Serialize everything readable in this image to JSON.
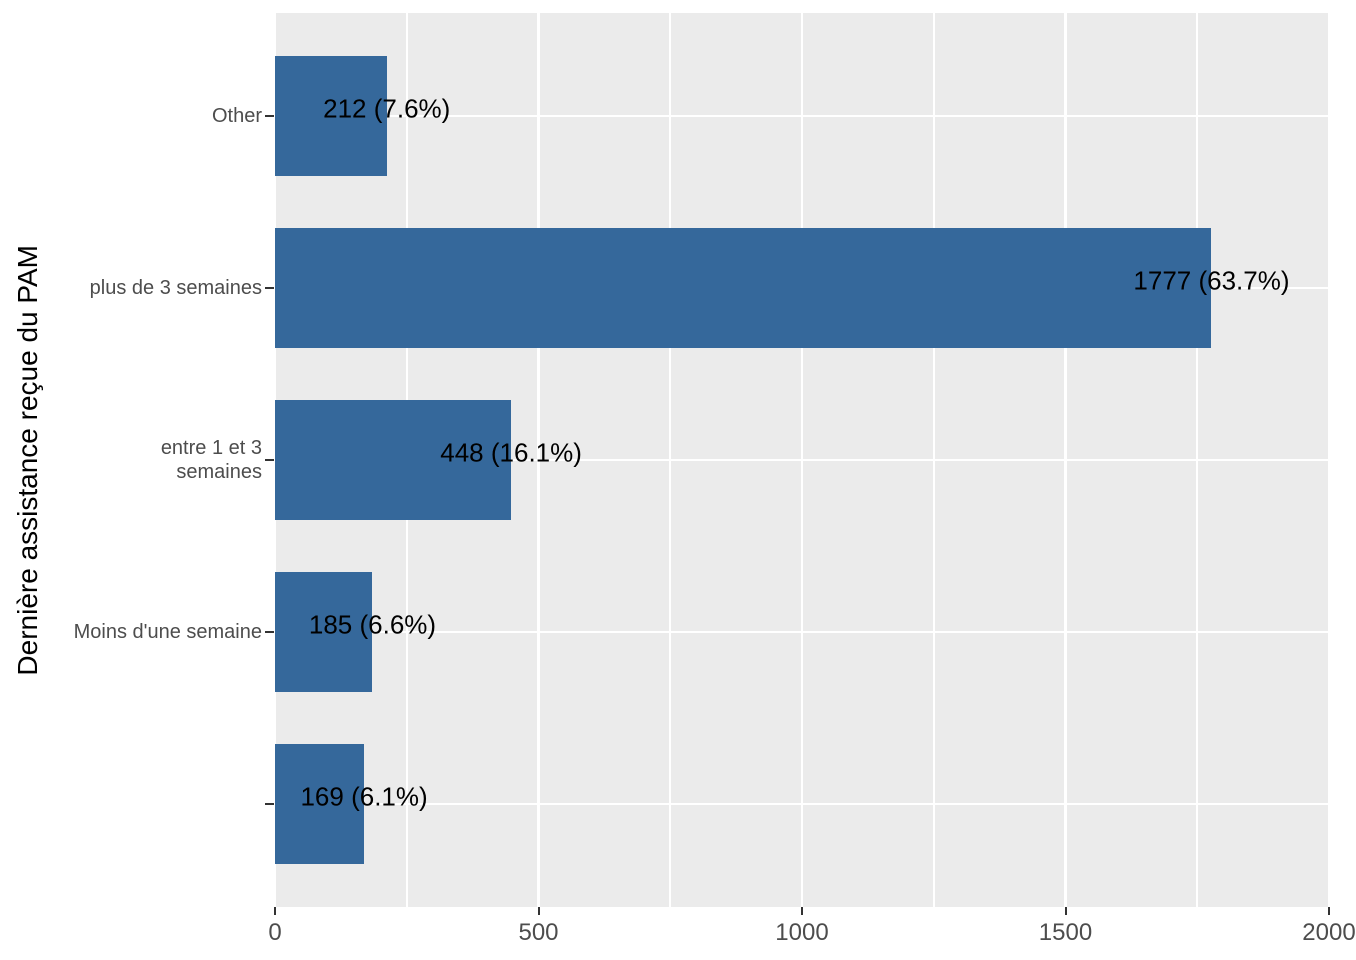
{
  "chart_data": {
    "type": "bar",
    "orientation": "horizontal",
    "title": "",
    "xlabel": "",
    "ylabel": "Dernière assistance reçue du PAM",
    "categories": [
      "Other",
      "plus de 3 semaines",
      "entre 1 et 3\nsemaines",
      "Moins d'une semaine",
      ""
    ],
    "values": [
      212,
      1777,
      448,
      185,
      169
    ],
    "bar_labels": [
      "212 (7.6%)",
      "1777 (63.7%)",
      "448 (16.1%)",
      "185 (6.6%)",
      "169 (6.1%)"
    ],
    "xlim": [
      0,
      2000
    ],
    "x_major_ticks": [
      0,
      500,
      1000,
      1500,
      2000
    ],
    "x_minor_gridlines": [
      250,
      750,
      1250,
      1750
    ],
    "grid": "major and minor vertical white, major horizontal white on grey panel",
    "legend": "none",
    "colors": {
      "bar": "#35689B",
      "panel_background": "#EBEBEB",
      "gridline": "#FFFFFF",
      "axis_text": "#4D4D4D",
      "tick_mark": "#333333",
      "value_label": "#000000",
      "axis_title": "#000000",
      "page_background": "#FFFFFF"
    }
  }
}
